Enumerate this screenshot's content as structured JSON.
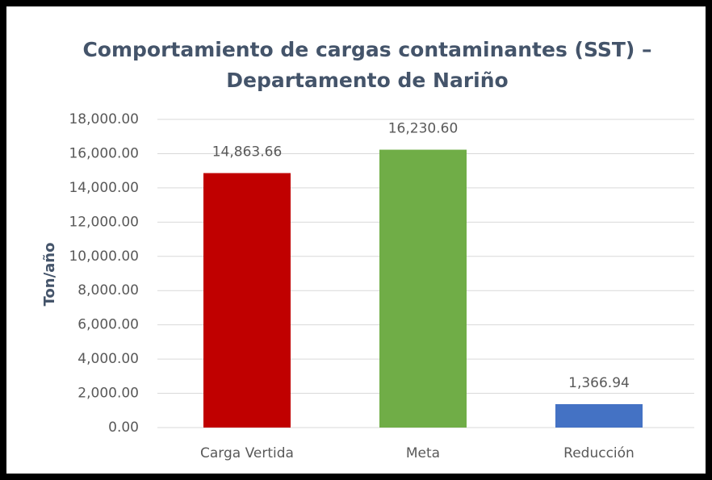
{
  "chart_data": {
    "type": "bar",
    "title": [
      "Comportamiento de cargas contaminantes (SST) –",
      "Departamento de Nariño"
    ],
    "y_label": "Ton/año",
    "categories": [
      "Carga Vertida",
      "Meta",
      "Reducción"
    ],
    "values": [
      14863.66,
      16230.6,
      1366.94
    ],
    "value_labels": [
      "14,863.66",
      "16,230.60",
      "1,366.94"
    ],
    "colors": [
      "#c00000",
      "#70ad47",
      "#4472c4"
    ],
    "ylim": [
      0,
      18000
    ],
    "yticks": [
      {
        "value": 0,
        "label": "0.00"
      },
      {
        "value": 2000,
        "label": "2,000.00"
      },
      {
        "value": 4000,
        "label": "4,000.00"
      },
      {
        "value": 6000,
        "label": "6,000.00"
      },
      {
        "value": 8000,
        "label": "8,000.00"
      },
      {
        "value": 10000,
        "label": "10,000.00"
      },
      {
        "value": 12000,
        "label": "12,000.00"
      },
      {
        "value": 14000,
        "label": "14,000.00"
      },
      {
        "value": 16000,
        "label": "16,000.00"
      },
      {
        "value": 18000,
        "label": "18,000.00"
      }
    ],
    "grid": true
  }
}
